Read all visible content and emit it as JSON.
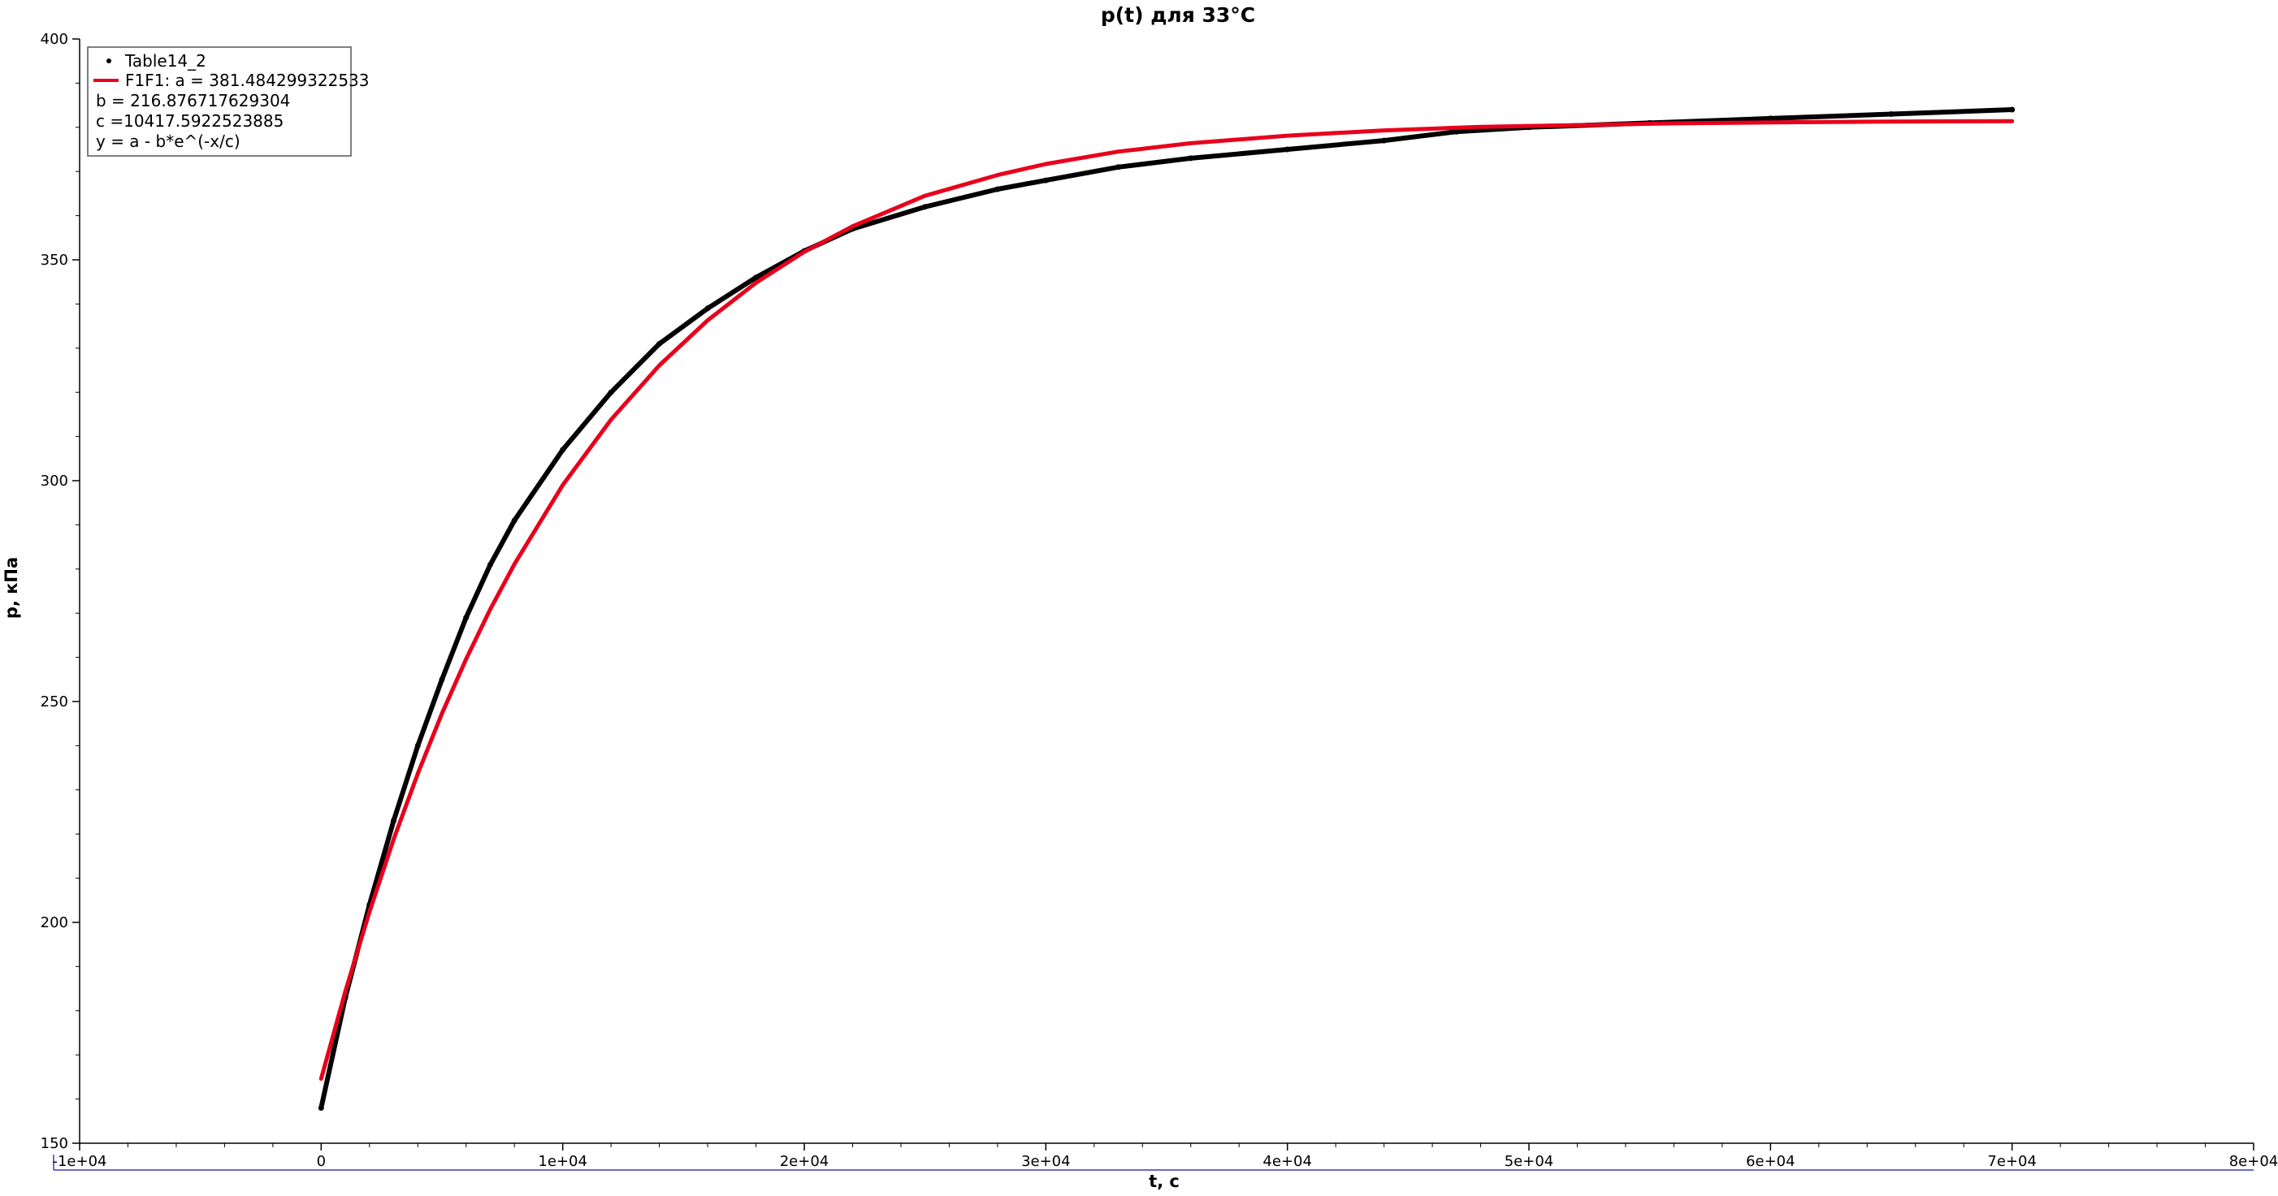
{
  "chart_data": {
    "type": "scatter",
    "title": "p(t) для 33°C",
    "xlabel": "t, с",
    "ylabel": "p, кПа",
    "xlim": [
      -10000,
      80000
    ],
    "ylim": [
      150,
      400
    ],
    "x_ticks": [
      -10000,
      0,
      10000,
      20000,
      30000,
      40000,
      50000,
      60000,
      70000,
      80000
    ],
    "x_tick_labels": [
      "-1e+04",
      "0",
      "1e+04",
      "2e+04",
      "3e+04",
      "4e+04",
      "5e+04",
      "6e+04",
      "7e+04",
      "8e+04"
    ],
    "y_ticks": [
      150,
      200,
      250,
      300,
      350,
      400
    ],
    "y_tick_labels": [
      "150",
      "200",
      "250",
      "300",
      "350",
      "400"
    ],
    "grid": false,
    "legend": {
      "position": "top-left",
      "entries": [
        {
          "label": "Table14_2",
          "marker": "dot",
          "color": "#000000"
        },
        {
          "label": "F1F1: a = 381.484299322533",
          "marker": "line",
          "color": "#e8001c"
        }
      ],
      "extra_lines": [
        "b = 216.876717629304",
        "c =10417.5922523885",
        "y = a - b*e^(-x/c)"
      ]
    },
    "series": [
      {
        "name": "Table14_2",
        "kind": "scatter",
        "color": "#000000",
        "x": [
          0,
          1000,
          2000,
          3000,
          4000,
          5000,
          6000,
          7000,
          8000,
          10000,
          12000,
          14000,
          16000,
          18000,
          20000,
          22000,
          25000,
          28000,
          30000,
          33000,
          36000,
          40000,
          44000,
          47000,
          50000,
          55000,
          60000,
          65000,
          70000
        ],
        "y": [
          158,
          183,
          204,
          223,
          240,
          255,
          269,
          281,
          291,
          307,
          320,
          331,
          339,
          346,
          352,
          357,
          362,
          366,
          368,
          371,
          373,
          375,
          377,
          379,
          380,
          381,
          382,
          383,
          384
        ]
      },
      {
        "name": "F1F1: a = 381.484299322533",
        "kind": "line",
        "color": "#e8001c",
        "x": [
          0,
          1000,
          2000,
          3000,
          4000,
          5000,
          6000,
          7000,
          8000,
          10000,
          12000,
          14000,
          16000,
          18000,
          20000,
          22000,
          25000,
          28000,
          30000,
          33000,
          36000,
          40000,
          44000,
          48000,
          52000,
          56000,
          60000,
          65000,
          70000
        ],
        "y": [
          164.6,
          184.4,
          202.4,
          218.8,
          233.7,
          247.3,
          259.6,
          270.9,
          281.1,
          299.0,
          313.8,
          326.1,
          336.3,
          344.8,
          351.8,
          357.6,
          364.5,
          369.2,
          371.7,
          374.5,
          376.4,
          378.1,
          379.3,
          380.1,
          380.5,
          380.9,
          381.1,
          381.3,
          381.4
        ]
      }
    ]
  }
}
